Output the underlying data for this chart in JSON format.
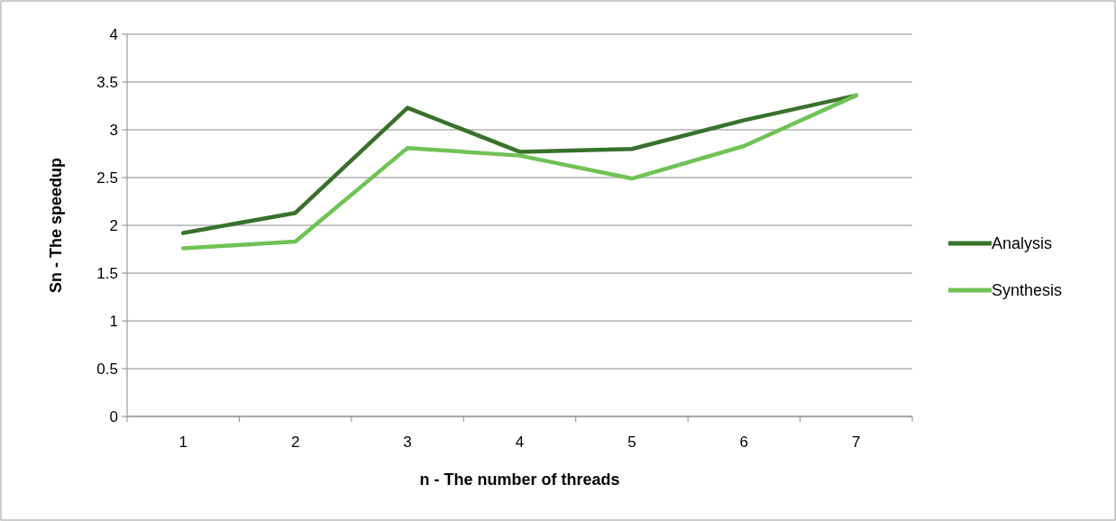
{
  "chart_data": {
    "type": "line",
    "xlabel": "n - The number of threads",
    "ylabel": "Sn - The speedup",
    "categories": [
      "1",
      "2",
      "3",
      "4",
      "5",
      "6",
      "7"
    ],
    "series": [
      {
        "name": "Analysis",
        "color": "#38712b",
        "values": [
          1.92,
          2.13,
          3.23,
          2.77,
          2.8,
          3.1,
          3.36
        ]
      },
      {
        "name": "Synthesis",
        "color": "#70c255",
        "values": [
          1.76,
          1.83,
          2.81,
          2.73,
          2.49,
          2.83,
          3.36
        ]
      }
    ],
    "ylim": [
      0,
      4
    ],
    "yticks": [
      0,
      0.5,
      1,
      1.5,
      2,
      2.5,
      3,
      3.5,
      4
    ],
    "grid": "y",
    "legend": "right",
    "marker": "none",
    "line_style": "solid"
  }
}
